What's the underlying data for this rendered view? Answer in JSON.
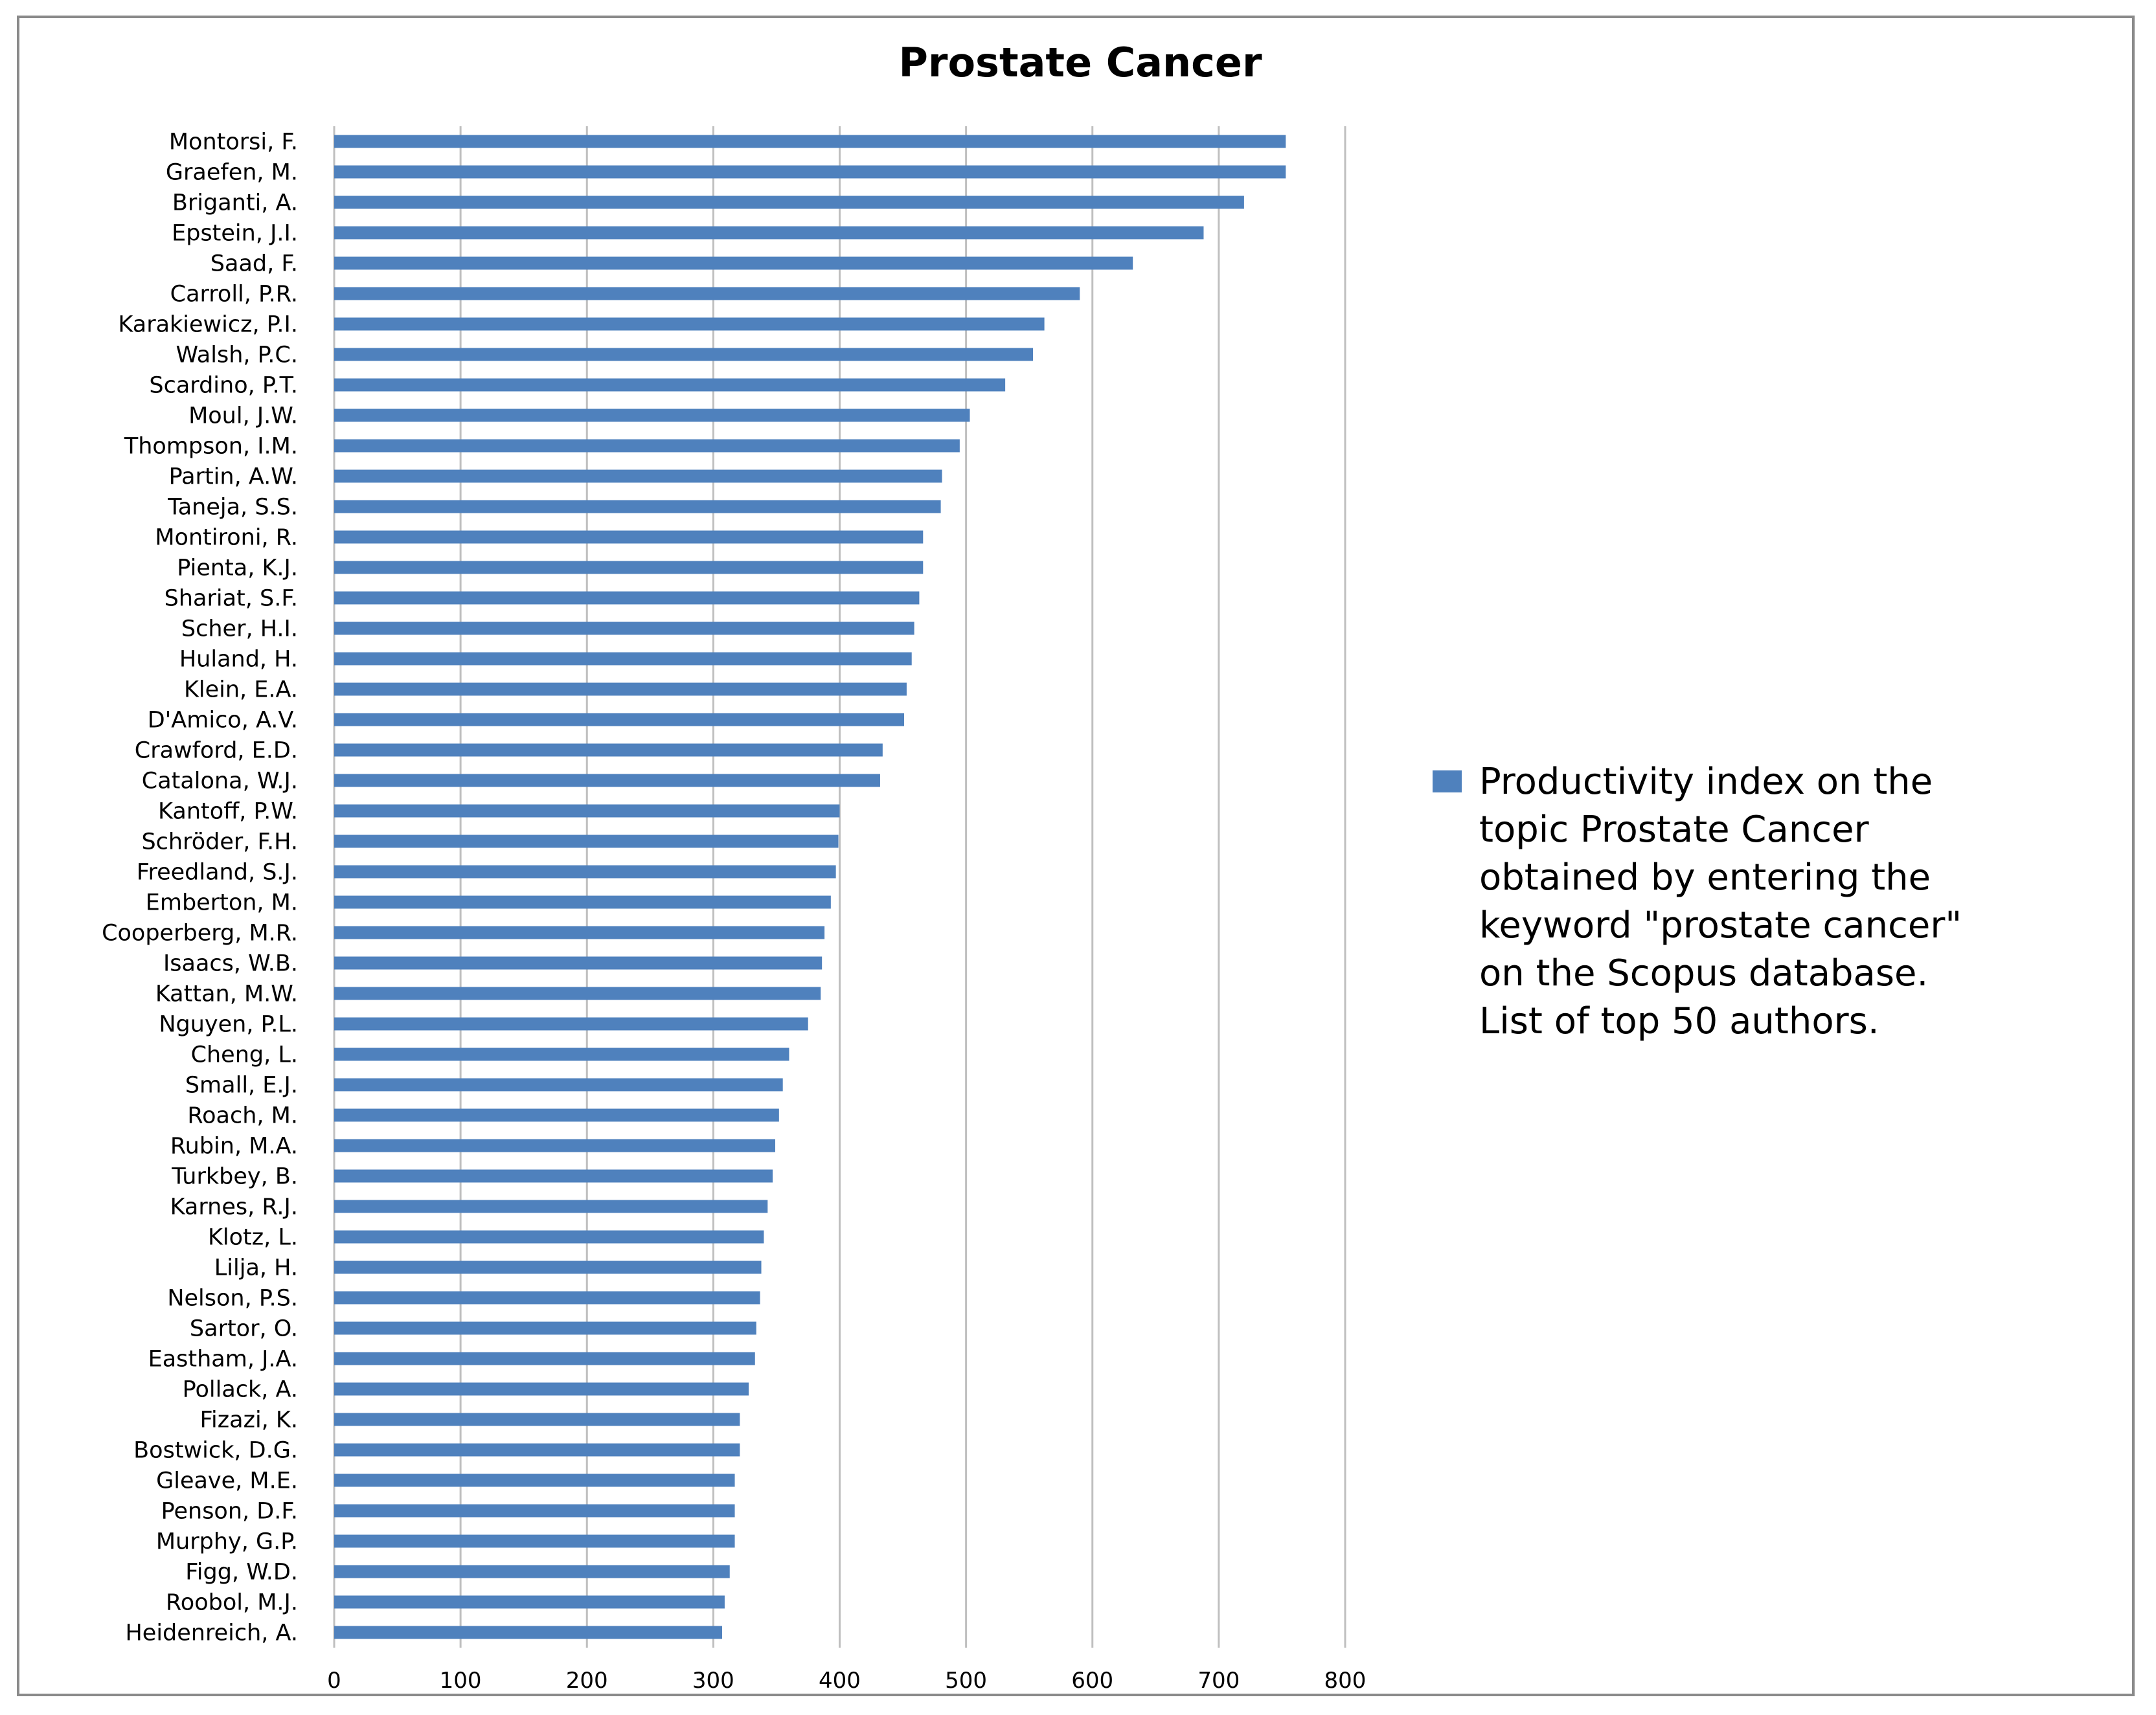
{
  "chart_data": {
    "type": "bar",
    "orientation": "horizontal",
    "title": "Prostate Cancer",
    "xlabel": "",
    "ylabel": "",
    "xlim": [
      0,
      800
    ],
    "xticks": [
      "0",
      "100",
      "200",
      "300",
      "400",
      "500",
      "600",
      "700",
      "800"
    ],
    "grid": "vertical",
    "legend_position": "right",
    "bar_color": "#4f81bd",
    "categories": [
      "Montorsi, F.",
      "Graefen, M.",
      "Briganti, A.",
      "Epstein, J.I.",
      "Saad, F.",
      "Carroll, P.R.",
      "Karakiewicz, P.I.",
      "Walsh, P.C.",
      "Scardino, P.T.",
      "Moul, J.W.",
      "Thompson, I.M.",
      "Partin, A.W.",
      "Taneja, S.S.",
      "Montironi, R.",
      "Pienta, K.J.",
      "Shariat, S.F.",
      "Scher, H.I.",
      "Huland, H.",
      "Klein, E.A.",
      "D'Amico, A.V.",
      "Crawford, E.D.",
      "Catalona, W.J.",
      "Kantoff, P.W.",
      "Schröder, F.H.",
      "Freedland, S.J.",
      "Emberton, M.",
      "Cooperberg, M.R.",
      "Isaacs, W.B.",
      "Kattan, M.W.",
      "Nguyen, P.L.",
      "Cheng, L.",
      "Small, E.J.",
      "Roach, M.",
      "Rubin, M.A.",
      "Turkbey, B.",
      "Karnes, R.J.",
      "Klotz, L.",
      "Lilja, H.",
      "Nelson, P.S.",
      "Sartor, O.",
      "Eastham, J.A.",
      "Pollack, A.",
      "Fizazi, K.",
      "Bostwick, D.G.",
      "Gleave, M.E.",
      "Penson, D.F.",
      "Murphy, G.P.",
      "Figg, W.D.",
      "Roobol, M.J.",
      "Heidenreich, A."
    ],
    "series": [
      {
        "name": "Productivity index on the topic Prostate Cancer obtained by entering the keyword \"prostate cancer\" on the Scopus database. List of top 50 authors.",
        "values": [
          753,
          753,
          720,
          688,
          632,
          590,
          562,
          553,
          531,
          503,
          495,
          481,
          480,
          466,
          466,
          463,
          459,
          457,
          453,
          451,
          434,
          432,
          400,
          399,
          397,
          393,
          388,
          386,
          385,
          375,
          360,
          355,
          352,
          349,
          347,
          343,
          340,
          338,
          337,
          334,
          333,
          328,
          321,
          321,
          317,
          317,
          317,
          313,
          309,
          307
        ]
      }
    ],
    "legend_lines": [
      "Productivity index on the",
      "topic Prostate Cancer",
      "obtained by entering the",
      "keyword \"prostate cancer\"",
      "on the Scopus database.",
      "List of top 50 authors."
    ]
  }
}
